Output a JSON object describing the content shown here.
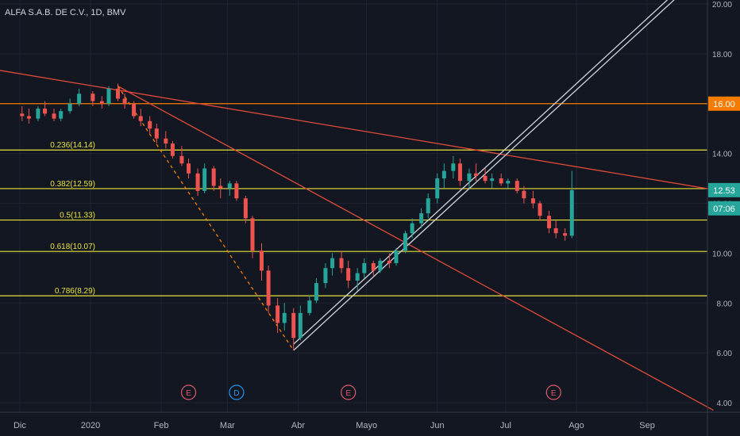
{
  "title": "ALFA S.A.B. DE C.V., 1D, BMV",
  "chart_data": {
    "type": "candlestick",
    "symbol": "ALFA S.A.B. DE C.V.",
    "interval": "1D",
    "exchange": "BMV",
    "y_axis": {
      "min": 4.0,
      "max": 20.0,
      "ticks": [
        "4.00",
        "6.00",
        "8.00",
        "10.00",
        "12.00",
        "14.00",
        "16.00",
        "18.00",
        "20.00"
      ],
      "side": "right"
    },
    "x_axis": {
      "ticks": [
        "Dic",
        "2020",
        "Feb",
        "Mar",
        "Abr",
        "Mayo",
        "Jun",
        "Jul",
        "Ago",
        "Sep"
      ]
    },
    "price_labels": [
      {
        "text": "16.00",
        "value": 16.0,
        "color": "#f57c00"
      },
      {
        "text": "12.53",
        "value": 12.53,
        "color": "#26a69a"
      },
      {
        "text": "07:06",
        "value": 11.8,
        "color": "#26a69a"
      }
    ],
    "fib_levels": [
      {
        "label": "0.236(14.14)",
        "value": 14.14
      },
      {
        "label": "0.382(12.59)",
        "value": 12.59
      },
      {
        "label": "0.5(11.33)",
        "value": 11.33
      },
      {
        "label": "0.618(10.07)",
        "value": 10.07
      },
      {
        "label": "0.786(8.29)",
        "value": 8.29
      }
    ],
    "horizontal_line": {
      "value": 16.0,
      "color": "#f57c00"
    },
    "events": [
      {
        "label": "E",
        "date": "2020-02-13",
        "color": "#e05a6b"
      },
      {
        "label": "D",
        "date": "2020-03-05",
        "color": "#2196f3"
      },
      {
        "label": "E",
        "date": "2020-04-23",
        "color": "#e05a6b"
      },
      {
        "label": "E",
        "date": "2020-07-22",
        "color": "#e05a6b"
      }
    ],
    "series": [
      {
        "candles": [
          {
            "date": "2019-12-02",
            "o": 15.6,
            "h": 15.9,
            "l": 15.3,
            "c": 15.5
          },
          {
            "date": "2019-12-05",
            "o": 15.5,
            "h": 15.8,
            "l": 15.2,
            "c": 15.4
          },
          {
            "date": "2019-12-09",
            "o": 15.4,
            "h": 15.9,
            "l": 15.3,
            "c": 15.8
          },
          {
            "date": "2019-12-12",
            "o": 15.8,
            "h": 16.1,
            "l": 15.5,
            "c": 15.6
          },
          {
            "date": "2019-12-16",
            "o": 15.6,
            "h": 15.8,
            "l": 15.3,
            "c": 15.4
          },
          {
            "date": "2019-12-19",
            "o": 15.4,
            "h": 15.8,
            "l": 15.3,
            "c": 15.7
          },
          {
            "date": "2019-12-23",
            "o": 15.7,
            "h": 16.2,
            "l": 15.6,
            "c": 16.0
          },
          {
            "date": "2019-12-27",
            "o": 16.0,
            "h": 16.6,
            "l": 15.9,
            "c": 16.4
          },
          {
            "date": "2020-01-02",
            "o": 16.4,
            "h": 16.5,
            "l": 15.9,
            "c": 16.1
          },
          {
            "date": "2020-01-06",
            "o": 16.1,
            "h": 16.3,
            "l": 15.8,
            "c": 16.0
          },
          {
            "date": "2020-01-09",
            "o": 16.0,
            "h": 16.7,
            "l": 15.9,
            "c": 16.6
          },
          {
            "date": "2020-01-13",
            "o": 16.6,
            "h": 16.8,
            "l": 16.1,
            "c": 16.2
          },
          {
            "date": "2020-01-16",
            "o": 16.2,
            "h": 16.4,
            "l": 15.8,
            "c": 16.0
          },
          {
            "date": "2020-01-20",
            "o": 16.0,
            "h": 16.1,
            "l": 15.4,
            "c": 15.5
          },
          {
            "date": "2020-01-23",
            "o": 15.5,
            "h": 15.8,
            "l": 15.1,
            "c": 15.3
          },
          {
            "date": "2020-01-27",
            "o": 15.3,
            "h": 15.5,
            "l": 14.8,
            "c": 15.0
          },
          {
            "date": "2020-01-30",
            "o": 15.0,
            "h": 15.2,
            "l": 14.4,
            "c": 14.6
          },
          {
            "date": "2020-02-03",
            "o": 14.6,
            "h": 14.9,
            "l": 14.2,
            "c": 14.4
          },
          {
            "date": "2020-02-06",
            "o": 14.4,
            "h": 14.5,
            "l": 13.8,
            "c": 13.9
          },
          {
            "date": "2020-02-10",
            "o": 13.9,
            "h": 14.3,
            "l": 13.5,
            "c": 13.6
          },
          {
            "date": "2020-02-13",
            "o": 13.6,
            "h": 13.8,
            "l": 13.0,
            "c": 13.2
          },
          {
            "date": "2020-02-17",
            "o": 13.2,
            "h": 13.4,
            "l": 12.3,
            "c": 12.5
          },
          {
            "date": "2020-02-20",
            "o": 12.5,
            "h": 13.6,
            "l": 12.4,
            "c": 13.4
          },
          {
            "date": "2020-02-24",
            "o": 13.4,
            "h": 13.5,
            "l": 12.5,
            "c": 12.7
          },
          {
            "date": "2020-02-27",
            "o": 12.7,
            "h": 13.0,
            "l": 12.2,
            "c": 12.6
          },
          {
            "date": "2020-03-02",
            "o": 12.6,
            "h": 12.9,
            "l": 12.3,
            "c": 12.8
          },
          {
            "date": "2020-03-05",
            "o": 12.8,
            "h": 12.9,
            "l": 12.1,
            "c": 12.2
          },
          {
            "date": "2020-03-09",
            "o": 12.2,
            "h": 12.3,
            "l": 11.2,
            "c": 11.4
          },
          {
            "date": "2020-03-12",
            "o": 11.4,
            "h": 11.5,
            "l": 9.8,
            "c": 10.1
          },
          {
            "date": "2020-03-16",
            "o": 10.1,
            "h": 10.4,
            "l": 8.9,
            "c": 9.3
          },
          {
            "date": "2020-03-19",
            "o": 9.3,
            "h": 9.5,
            "l": 7.6,
            "c": 7.9
          },
          {
            "date": "2020-03-23",
            "o": 7.9,
            "h": 8.2,
            "l": 6.8,
            "c": 7.2
          },
          {
            "date": "2020-03-26",
            "o": 7.2,
            "h": 8.0,
            "l": 6.9,
            "c": 7.6
          },
          {
            "date": "2020-03-30",
            "o": 7.6,
            "h": 7.8,
            "l": 6.1,
            "c": 6.6
          },
          {
            "date": "2020-04-02",
            "o": 6.6,
            "h": 7.9,
            "l": 6.5,
            "c": 7.6
          },
          {
            "date": "2020-04-06",
            "o": 7.6,
            "h": 8.3,
            "l": 7.5,
            "c": 8.1
          },
          {
            "date": "2020-04-09",
            "o": 8.1,
            "h": 9.0,
            "l": 8.0,
            "c": 8.8
          },
          {
            "date": "2020-04-13",
            "o": 8.8,
            "h": 9.6,
            "l": 8.6,
            "c": 9.4
          },
          {
            "date": "2020-04-16",
            "o": 9.4,
            "h": 10.0,
            "l": 9.1,
            "c": 9.8
          },
          {
            "date": "2020-04-20",
            "o": 9.8,
            "h": 10.1,
            "l": 9.2,
            "c": 9.4
          },
          {
            "date": "2020-04-23",
            "o": 9.4,
            "h": 9.7,
            "l": 8.6,
            "c": 8.9
          },
          {
            "date": "2020-04-27",
            "o": 8.9,
            "h": 9.4,
            "l": 8.5,
            "c": 9.2
          },
          {
            "date": "2020-04-30",
            "o": 9.2,
            "h": 9.8,
            "l": 9.0,
            "c": 9.6
          },
          {
            "date": "2020-05-04",
            "o": 9.6,
            "h": 9.7,
            "l": 9.1,
            "c": 9.3
          },
          {
            "date": "2020-05-07",
            "o": 9.3,
            "h": 9.8,
            "l": 9.2,
            "c": 9.7
          },
          {
            "date": "2020-05-11",
            "o": 9.7,
            "h": 10.0,
            "l": 9.4,
            "c": 9.6
          },
          {
            "date": "2020-05-14",
            "o": 9.6,
            "h": 10.2,
            "l": 9.5,
            "c": 10.1
          },
          {
            "date": "2020-05-18",
            "o": 10.1,
            "h": 10.9,
            "l": 10.0,
            "c": 10.8
          },
          {
            "date": "2020-05-21",
            "o": 10.8,
            "h": 11.4,
            "l": 10.6,
            "c": 11.2
          },
          {
            "date": "2020-05-25",
            "o": 11.2,
            "h": 11.8,
            "l": 11.0,
            "c": 11.6
          },
          {
            "date": "2020-05-28",
            "o": 11.6,
            "h": 12.4,
            "l": 11.4,
            "c": 12.2
          },
          {
            "date": "2020-06-01",
            "o": 12.2,
            "h": 13.2,
            "l": 12.0,
            "c": 13.0
          },
          {
            "date": "2020-06-04",
            "o": 13.0,
            "h": 13.6,
            "l": 12.6,
            "c": 13.3
          },
          {
            "date": "2020-06-08",
            "o": 13.3,
            "h": 13.9,
            "l": 13.0,
            "c": 13.6
          },
          {
            "date": "2020-06-11",
            "o": 13.6,
            "h": 13.8,
            "l": 12.7,
            "c": 12.9
          },
          {
            "date": "2020-06-15",
            "o": 12.9,
            "h": 13.4,
            "l": 12.6,
            "c": 13.2
          },
          {
            "date": "2020-06-18",
            "o": 13.2,
            "h": 13.6,
            "l": 12.9,
            "c": 13.1
          },
          {
            "date": "2020-06-22",
            "o": 13.1,
            "h": 13.4,
            "l": 12.8,
            "c": 12.9
          },
          {
            "date": "2020-06-25",
            "o": 12.9,
            "h": 13.2,
            "l": 12.6,
            "c": 13.0
          },
          {
            "date": "2020-06-29",
            "o": 13.0,
            "h": 13.2,
            "l": 12.7,
            "c": 12.8
          },
          {
            "date": "2020-07-02",
            "o": 12.8,
            "h": 13.0,
            "l": 12.6,
            "c": 12.9
          },
          {
            "date": "2020-07-06",
            "o": 12.9,
            "h": 13.0,
            "l": 12.4,
            "c": 12.5
          },
          {
            "date": "2020-07-09",
            "o": 12.5,
            "h": 12.7,
            "l": 12.0,
            "c": 12.2
          },
          {
            "date": "2020-07-13",
            "o": 12.2,
            "h": 12.5,
            "l": 11.8,
            "c": 12.0
          },
          {
            "date": "2020-07-16",
            "o": 12.0,
            "h": 12.1,
            "l": 11.3,
            "c": 11.5
          },
          {
            "date": "2020-07-20",
            "o": 11.5,
            "h": 11.7,
            "l": 10.8,
            "c": 11.0
          },
          {
            "date": "2020-07-23",
            "o": 11.0,
            "h": 11.3,
            "l": 10.6,
            "c": 10.8
          },
          {
            "date": "2020-07-27",
            "o": 10.8,
            "h": 11.0,
            "l": 10.5,
            "c": 10.7
          },
          {
            "date": "2020-07-30",
            "o": 10.7,
            "h": 13.3,
            "l": 10.6,
            "c": 12.53
          }
        ]
      }
    ],
    "trendlines": [
      {
        "from": {
          "date": "2019-11-18",
          "value": 17.4
        },
        "to": {
          "date": "2020-09-30",
          "value": 12.55
        },
        "color": "#e04b3a"
      },
      {
        "from": {
          "date": "2020-01-13",
          "value": 16.7
        },
        "to": {
          "date": "2020-09-30",
          "value": 3.7
        },
        "color": "#e04b3a"
      },
      {
        "from": {
          "date": "2020-01-13",
          "value": 16.7
        },
        "to": {
          "date": "2020-03-30",
          "value": 6.1
        },
        "color": "#f57c00",
        "style": "dashed"
      }
    ],
    "channel": [
      {
        "from": {
          "date": "2020-03-30",
          "value": 6.1
        },
        "to": {
          "date": "2020-09-18",
          "value": 20.6
        }
      },
      {
        "from": {
          "date": "2020-03-30",
          "value": 6.35
        },
        "to": {
          "date": "2020-09-18",
          "value": 20.85
        }
      }
    ]
  }
}
